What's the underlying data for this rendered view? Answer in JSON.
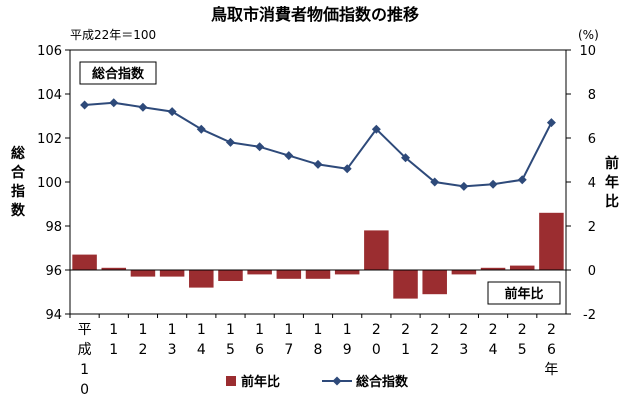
{
  "title": "鳥取市消費者物価指数の推移",
  "base_note": "平成22年＝100",
  "right_unit": "(%)",
  "left_axis_label": "総合指数",
  "right_axis_label": "前年比",
  "box_label_index": "総合指数",
  "box_label_yoy": "前年比",
  "x_tick_labels": [
    "平成10",
    "11",
    "12",
    "13",
    "14",
    "15",
    "16",
    "17",
    "18",
    "19",
    "20",
    "21",
    "22",
    "23",
    "24",
    "25",
    "26年"
  ],
  "legend": {
    "bar_label": "前年比",
    "line_label": "総合指数"
  },
  "colors": {
    "bar": "#9b2d30",
    "line": "#2e4a7a",
    "axis": "#000000"
  },
  "chart_data": {
    "type": "bar+line",
    "categories": [
      "平成10",
      "11",
      "12",
      "13",
      "14",
      "15",
      "16",
      "17",
      "18",
      "19",
      "20",
      "21",
      "22",
      "23",
      "24",
      "25",
      "26年"
    ],
    "series": [
      {
        "name": "前年比",
        "type": "bar",
        "axis": "right",
        "values": [
          0.7,
          0.1,
          -0.3,
          -0.3,
          -0.8,
          -0.5,
          -0.2,
          -0.4,
          -0.4,
          -0.2,
          1.8,
          -1.3,
          -1.1,
          -0.2,
          0.1,
          0.2,
          2.6
        ]
      },
      {
        "name": "総合指数",
        "type": "line",
        "axis": "left",
        "values": [
          103.5,
          103.6,
          103.4,
          103.2,
          102.4,
          101.8,
          101.6,
          101.2,
          100.8,
          100.6,
          102.4,
          101.1,
          100.0,
          99.8,
          99.9,
          100.1,
          102.7
        ]
      }
    ],
    "left_axis": {
      "label": "総合指数",
      "ylim": [
        94,
        106
      ],
      "ticks": [
        94,
        96,
        98,
        100,
        102,
        104,
        106
      ]
    },
    "right_axis": {
      "label": "前年比",
      "unit": "(%)",
      "ylim": [
        -2,
        10
      ],
      "ticks": [
        -2,
        0,
        2,
        4,
        6,
        8,
        10
      ]
    },
    "grid": false,
    "legend_position": "bottom"
  }
}
